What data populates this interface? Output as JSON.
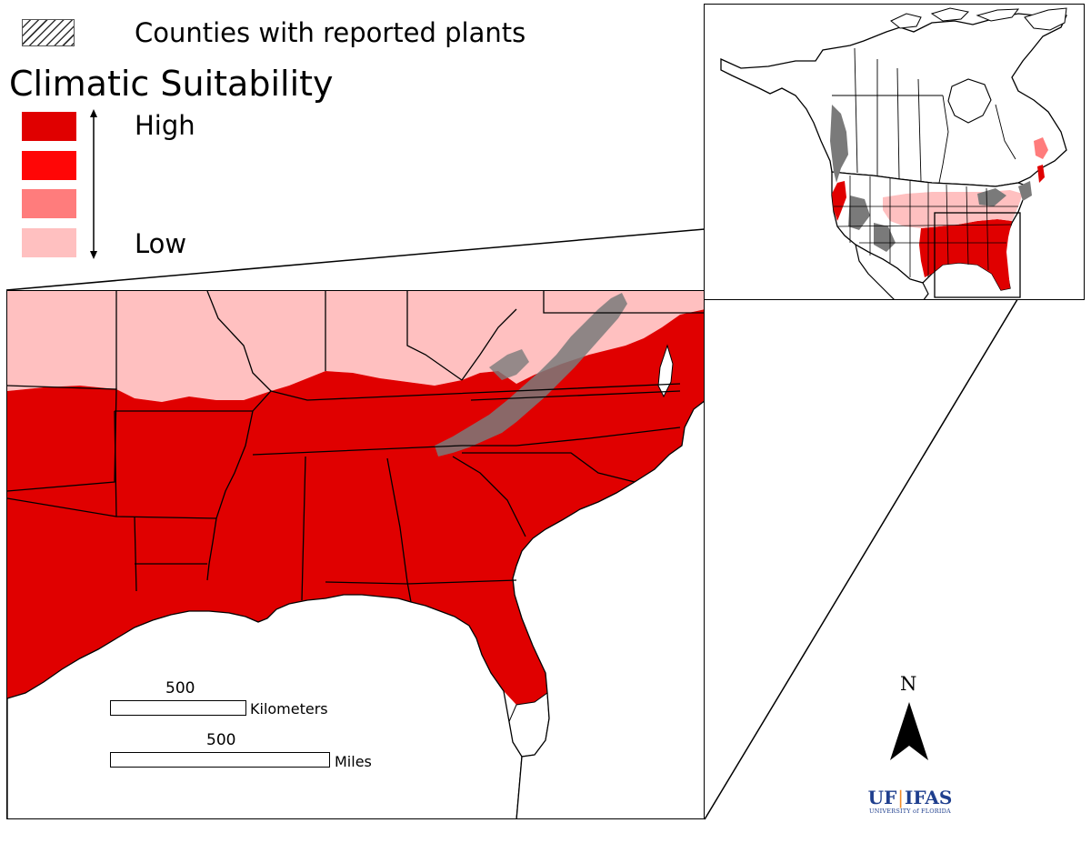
{
  "legend": {
    "hatch_label": "Counties with reported plants",
    "title": "Climatic Suitability",
    "high_label": "High",
    "low_label": "Low",
    "classes": [
      {
        "level": "high",
        "color": "#e00000"
      },
      {
        "level": "medium-high",
        "color": "#ff0606"
      },
      {
        "level": "medium-low",
        "color": "#ff7c7c"
      },
      {
        "level": "low",
        "color": "#ffc0c0"
      }
    ],
    "hatch_color": "#7a7a7a"
  },
  "scale": {
    "km_value": "500",
    "km_unit": "Kilometers",
    "mi_value": "500",
    "mi_unit": "Miles"
  },
  "north_arrow": {
    "letter": "N",
    "icon": "north-arrow-icon"
  },
  "logo": {
    "main_left": "UF",
    "main_right": "IFAS",
    "sub": "UNIVERSITY of FLORIDA"
  },
  "colors": {
    "high": "#e00000",
    "low": "#ffc0c0",
    "reported": "#7a7a7a",
    "water": "#ffffff",
    "boundary": "#000000"
  }
}
